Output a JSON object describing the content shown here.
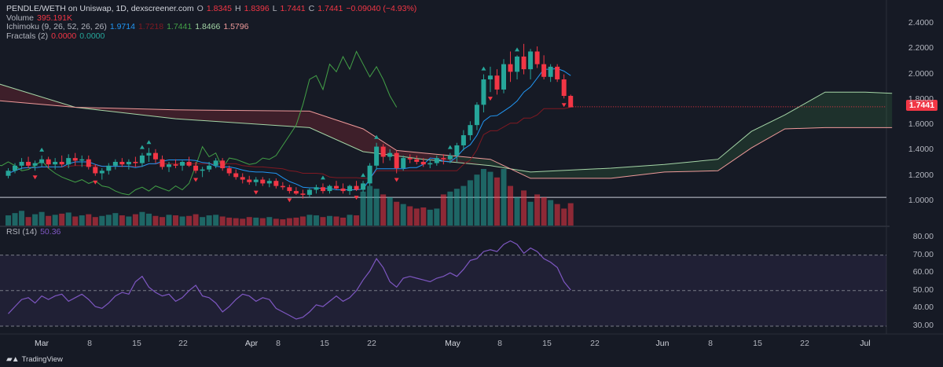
{
  "legend": {
    "title": "PENDLE/WETH on Uniswap, 1D, dexscreener.com",
    "ohlc": {
      "o_label": "O",
      "o": "1.8345",
      "h_label": "H",
      "h": "1.8396",
      "l_label": "L",
      "l": "1.7441",
      "c_label": "C",
      "c": "1.7441",
      "change": "−0.09040 (−4.93%)"
    },
    "volume_label": "Volume",
    "volume_value": "395.191K",
    "ichimoku_label": "Ichimoku (9, 26, 52, 26, 26)",
    "ichimoku_values": [
      "1.9714",
      "1.7218",
      "1.7441",
      "1.8466",
      "1.5796"
    ],
    "fractals_label": "Fractals (2)",
    "fractals_values": [
      "0.0000",
      "0.0000"
    ],
    "rsi_label": "RSI (14)",
    "rsi_value": "50.36"
  },
  "colors": {
    "bg": "#161a25",
    "up": "#26a69a",
    "down": "#f23645",
    "tenkan": "#2196f3",
    "kijun": "#801922",
    "chikou": "#43a047",
    "span_a": "#a5d6a7",
    "span_b": "#ef9a9a",
    "rsi": "#7e57c2"
  },
  "price_box": "1.7441",
  "x_labels": [
    "Mar",
    "8",
    "15",
    "22",
    "Apr",
    "8",
    "15",
    "22",
    "May",
    "8",
    "15",
    "22",
    "Jun",
    "8",
    "15",
    "22",
    "Jul"
  ],
  "bold_x_labels": [
    "Mar",
    "Apr",
    "May",
    "Jun",
    "Jul"
  ],
  "y_labels_price": [
    "2.4000",
    "2.2000",
    "2.0000",
    "1.8000",
    "1.6000",
    "1.4000",
    "1.2000",
    "1.0000"
  ],
  "y_labels_rsi": [
    "80.00",
    "70.00",
    "60.00",
    "50.00",
    "40.00",
    "30.00"
  ],
  "branding": "TradingView",
  "chart_data": {
    "type": "candlestick",
    "title": "PENDLE/WETH on Uniswap, 1D, dexscreener.com",
    "start_date": "2024-02-23",
    "end_date": "2024-05-18",
    "price_axis": {
      "min": 0.86,
      "max": 2.48,
      "ticks": [
        1.0,
        1.2,
        1.4,
        1.6,
        1.8,
        2.0,
        2.2,
        2.4
      ],
      "reference_line": 1.03
    },
    "candles_ohlc": [
      [
        1.2,
        1.26,
        1.18,
        1.24
      ],
      [
        1.24,
        1.3,
        1.22,
        1.28
      ],
      [
        1.28,
        1.34,
        1.25,
        1.31
      ],
      [
        1.31,
        1.35,
        1.26,
        1.28
      ],
      [
        1.28,
        1.32,
        1.24,
        1.3
      ],
      [
        1.3,
        1.36,
        1.27,
        1.33
      ],
      [
        1.33,
        1.35,
        1.26,
        1.29
      ],
      [
        1.29,
        1.34,
        1.25,
        1.31
      ],
      [
        1.31,
        1.36,
        1.27,
        1.29
      ],
      [
        1.29,
        1.37,
        1.26,
        1.34
      ],
      [
        1.34,
        1.38,
        1.28,
        1.32
      ],
      [
        1.32,
        1.36,
        1.27,
        1.33
      ],
      [
        1.33,
        1.36,
        1.25,
        1.27
      ],
      [
        1.27,
        1.29,
        1.2,
        1.22
      ],
      [
        1.22,
        1.26,
        1.17,
        1.24
      ],
      [
        1.24,
        1.3,
        1.21,
        1.28
      ],
      [
        1.28,
        1.33,
        1.25,
        1.31
      ],
      [
        1.31,
        1.34,
        1.27,
        1.29
      ],
      [
        1.29,
        1.33,
        1.25,
        1.31
      ],
      [
        1.31,
        1.35,
        1.27,
        1.3
      ],
      [
        1.3,
        1.38,
        1.27,
        1.36
      ],
      [
        1.36,
        1.42,
        1.31,
        1.38
      ],
      [
        1.38,
        1.41,
        1.3,
        1.33
      ],
      [
        1.33,
        1.36,
        1.25,
        1.27
      ],
      [
        1.27,
        1.31,
        1.23,
        1.29
      ],
      [
        1.29,
        1.33,
        1.26,
        1.28
      ],
      [
        1.28,
        1.32,
        1.24,
        1.31
      ],
      [
        1.31,
        1.35,
        1.27,
        1.28
      ],
      [
        1.28,
        1.31,
        1.22,
        1.24
      ],
      [
        1.24,
        1.27,
        1.19,
        1.25
      ],
      [
        1.25,
        1.31,
        1.23,
        1.28
      ],
      [
        1.28,
        1.34,
        1.26,
        1.32
      ],
      [
        1.32,
        1.34,
        1.24,
        1.26
      ],
      [
        1.26,
        1.28,
        1.2,
        1.22
      ],
      [
        1.22,
        1.25,
        1.17,
        1.19
      ],
      [
        1.19,
        1.22,
        1.14,
        1.17
      ],
      [
        1.17,
        1.2,
        1.13,
        1.15
      ],
      [
        1.15,
        1.19,
        1.12,
        1.17
      ],
      [
        1.17,
        1.19,
        1.12,
        1.14
      ],
      [
        1.14,
        1.18,
        1.11,
        1.16
      ],
      [
        1.16,
        1.18,
        1.1,
        1.12
      ],
      [
        1.12,
        1.15,
        1.09,
        1.11
      ],
      [
        1.11,
        1.13,
        1.06,
        1.08
      ],
      [
        1.08,
        1.11,
        1.05,
        1.06
      ],
      [
        1.06,
        1.09,
        1.02,
        1.05
      ],
      [
        1.05,
        1.1,
        1.03,
        1.09
      ],
      [
        1.09,
        1.13,
        1.06,
        1.11
      ],
      [
        1.11,
        1.14,
        1.06,
        1.08
      ],
      [
        1.08,
        1.13,
        1.06,
        1.12
      ],
      [
        1.12,
        1.16,
        1.09,
        1.1
      ],
      [
        1.1,
        1.14,
        1.06,
        1.08
      ],
      [
        1.08,
        1.13,
        1.05,
        1.12
      ],
      [
        1.12,
        1.16,
        1.08,
        1.09
      ],
      [
        1.09,
        1.16,
        1.07,
        1.14
      ],
      [
        1.14,
        1.3,
        1.12,
        1.28
      ],
      [
        1.28,
        1.46,
        1.25,
        1.43
      ],
      [
        1.43,
        1.45,
        1.3,
        1.35
      ],
      [
        1.35,
        1.41,
        1.32,
        1.38
      ],
      [
        1.38,
        1.4,
        1.22,
        1.26
      ],
      [
        1.26,
        1.36,
        1.24,
        1.34
      ],
      [
        1.34,
        1.37,
        1.3,
        1.33
      ],
      [
        1.33,
        1.36,
        1.29,
        1.31
      ],
      [
        1.31,
        1.34,
        1.27,
        1.29
      ],
      [
        1.29,
        1.33,
        1.26,
        1.3
      ],
      [
        1.3,
        1.36,
        1.28,
        1.34
      ],
      [
        1.34,
        1.37,
        1.29,
        1.33
      ],
      [
        1.33,
        1.38,
        1.3,
        1.36
      ],
      [
        1.36,
        1.46,
        1.31,
        1.44
      ],
      [
        1.44,
        1.56,
        1.4,
        1.52
      ],
      [
        1.52,
        1.63,
        1.48,
        1.6
      ],
      [
        1.6,
        1.78,
        1.56,
        1.76
      ],
      [
        1.76,
        2.0,
        1.7,
        1.96
      ],
      [
        1.96,
        2.06,
        1.86,
        1.99
      ],
      [
        1.99,
        2.04,
        1.84,
        1.88
      ],
      [
        1.88,
        2.12,
        1.85,
        2.08
      ],
      [
        2.08,
        2.18,
        1.94,
        2.02
      ],
      [
        2.02,
        2.15,
        1.96,
        2.14
      ],
      [
        2.14,
        2.24,
        2.0,
        2.04
      ],
      [
        2.04,
        2.2,
        1.96,
        2.18
      ],
      [
        2.18,
        2.22,
        2.05,
        2.08
      ],
      [
        2.08,
        2.15,
        1.96,
        1.98
      ],
      [
        1.98,
        2.08,
        1.94,
        2.06
      ],
      [
        2.06,
        2.08,
        1.94,
        1.96
      ],
      [
        1.96,
        2.0,
        1.81,
        1.83
      ],
      [
        1.83,
        1.84,
        1.74,
        1.74
      ]
    ],
    "volume_approx_k": [
      180,
      220,
      260,
      150,
      200,
      240,
      170,
      190,
      210,
      230,
      160,
      180,
      200,
      150,
      170,
      190,
      220,
      180,
      160,
      200,
      240,
      210,
      170,
      150,
      190,
      180,
      160,
      170,
      200,
      150,
      180,
      190,
      160,
      140,
      130,
      120,
      150,
      140,
      130,
      150,
      120,
      110,
      130,
      140,
      160,
      190,
      180,
      150,
      170,
      160,
      140,
      190,
      180,
      600,
      700,
      650,
      550,
      500,
      420,
      380,
      340,
      300,
      320,
      280,
      300,
      550,
      600,
      650,
      700,
      800,
      900,
      1000,
      950,
      850,
      1000,
      700,
      500,
      620,
      420,
      550,
      500,
      450,
      380,
      300,
      395
    ],
    "ichimoku": {
      "tenkan": 1.9714,
      "kijun": 1.7218,
      "chikou": 1.7441,
      "span_a": 1.8466,
      "span_b": 1.5796
    },
    "rsi": {
      "period": 14,
      "last": 50.36,
      "ylim": [
        26,
        84
      ],
      "bands": [
        30,
        50,
        70
      ],
      "values": [
        37,
        41,
        45,
        46,
        43,
        47,
        45,
        47,
        48,
        44,
        46,
        48,
        45,
        41,
        40,
        43,
        47,
        49,
        48,
        55,
        58,
        52,
        49,
        47,
        48,
        44,
        46,
        50,
        53,
        47,
        46,
        43,
        38,
        41,
        45,
        48,
        47,
        44,
        46,
        45,
        40,
        38,
        36,
        34,
        35,
        38,
        42,
        41,
        44,
        47,
        44,
        46,
        50,
        56,
        61,
        68,
        63,
        55,
        52,
        57,
        58,
        57,
        56,
        55,
        57,
        58,
        60,
        58,
        62,
        67,
        68,
        72,
        73,
        72,
        76,
        78,
        76,
        71,
        74,
        72,
        68,
        66,
        63,
        55,
        50.36
      ],
      "values_note_dropped": true
    }
  }
}
